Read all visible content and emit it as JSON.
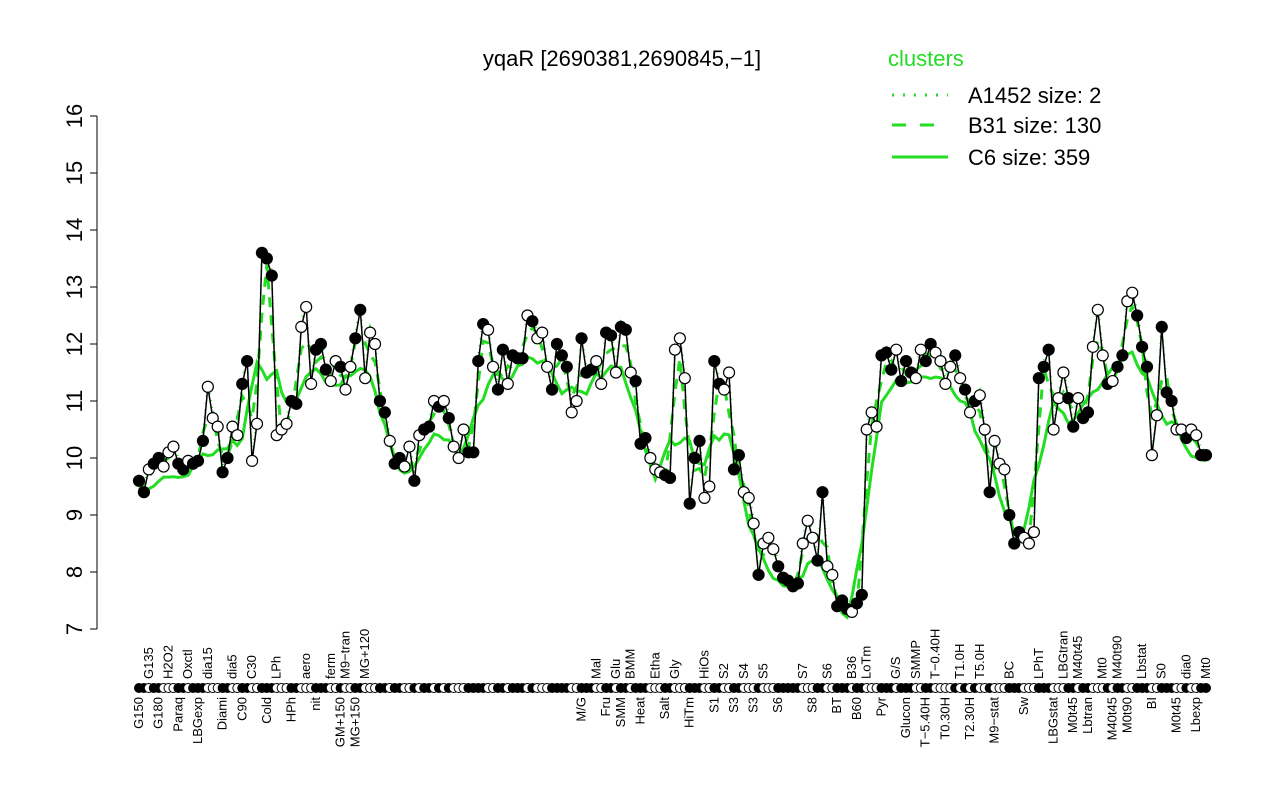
{
  "chart_data": {
    "type": "line",
    "title": "yqaR [2690381,2690845,−1]",
    "xlabel": "",
    "ylabel": "",
    "ylim": [
      7,
      16
    ],
    "yticks": [
      7,
      8,
      9,
      10,
      11,
      12,
      13,
      14,
      15,
      16
    ],
    "grid": false,
    "legend": {
      "title": "clusters",
      "placement": "top-right",
      "entries": [
        {
          "name": "A1452 size: 2",
          "style": "dotted"
        },
        {
          "name": "B31 size: 130",
          "style": "dashed"
        },
        {
          "name": "C6 size: 359",
          "style": "solid"
        }
      ]
    },
    "colors": {
      "cluster": "#22dd22",
      "points": "#000000"
    },
    "points": [
      [
        "G150",
        9.6,
        1
      ],
      [
        "",
        9.4,
        1
      ],
      [
        "G135",
        9.8,
        0
      ],
      [
        "",
        9.9,
        1
      ],
      [
        "G180",
        10.0,
        1
      ],
      [
        "",
        9.85,
        0
      ],
      [
        "H2O2",
        10.1,
        0
      ],
      [
        "",
        10.2,
        0
      ],
      [
        "Paraq",
        9.9,
        1
      ],
      [
        "",
        9.8,
        1
      ],
      [
        "Oxctl",
        9.95,
        0
      ],
      [
        "",
        9.9,
        1
      ],
      [
        "LBGexp",
        9.95,
        1
      ],
      [
        "",
        10.3,
        1
      ],
      [
        "dia15",
        11.25,
        0
      ],
      [
        "",
        10.7,
        0
      ],
      [
        "",
        10.55,
        0
      ],
      [
        "Diami",
        9.75,
        1
      ],
      [
        "",
        10.0,
        1
      ],
      [
        "dia5",
        10.55,
        0
      ],
      [
        "",
        10.4,
        0
      ],
      [
        "C90",
        11.3,
        1
      ],
      [
        "",
        11.7,
        1
      ],
      [
        "C30",
        9.95,
        0
      ],
      [
        "",
        10.6,
        0
      ],
      [
        "",
        13.6,
        1
      ],
      [
        "Cold",
        13.5,
        1
      ],
      [
        "",
        13.2,
        1
      ],
      [
        "LPh",
        10.4,
        0
      ],
      [
        "",
        10.5,
        0
      ],
      [
        "",
        10.6,
        0
      ],
      [
        "HPh",
        11.0,
        1
      ],
      [
        "",
        10.95,
        1
      ],
      [
        "",
        12.3,
        0
      ],
      [
        "aero",
        12.65,
        0
      ],
      [
        "",
        11.3,
        0
      ],
      [
        "nit",
        11.9,
        1
      ],
      [
        "",
        12.0,
        1
      ],
      [
        "",
        11.55,
        1
      ],
      [
        "ferm",
        11.35,
        0
      ],
      [
        "",
        11.7,
        0
      ],
      [
        "GM+150",
        11.6,
        1
      ],
      [
        "M9−tran",
        11.2,
        0
      ],
      [
        "",
        11.6,
        0
      ],
      [
        "MG+150",
        12.1,
        1
      ],
      [
        "",
        12.6,
        1
      ],
      [
        "MG+120",
        11.4,
        0
      ],
      [
        "",
        12.2,
        0
      ],
      [
        "",
        12.0,
        0
      ],
      [
        "",
        11.0,
        1
      ],
      [
        "",
        10.8,
        1
      ],
      [
        "",
        10.3,
        0
      ],
      [
        "",
        9.9,
        1
      ],
      [
        "",
        10.0,
        1
      ],
      [
        "",
        9.85,
        0
      ],
      [
        "",
        10.2,
        0
      ],
      [
        "",
        9.6,
        1
      ],
      [
        "",
        10.4,
        0
      ],
      [
        "",
        10.5,
        1
      ],
      [
        "",
        10.55,
        1
      ],
      [
        "",
        11.0,
        0
      ],
      [
        "",
        10.9,
        1
      ],
      [
        "",
        11.0,
        0
      ],
      [
        "",
        10.7,
        1
      ],
      [
        "",
        10.2,
        0
      ],
      [
        "",
        10.0,
        0
      ],
      [
        "",
        10.5,
        0
      ],
      [
        "",
        10.1,
        1
      ],
      [
        "",
        10.1,
        1
      ],
      [
        "",
        11.7,
        1
      ],
      [
        "",
        12.35,
        1
      ],
      [
        "",
        12.25,
        0
      ],
      [
        "",
        11.6,
        0
      ],
      [
        "",
        11.2,
        1
      ],
      [
        "",
        11.9,
        1
      ],
      [
        "",
        11.3,
        0
      ],
      [
        "",
        11.8,
        1
      ],
      [
        "",
        11.75,
        1
      ],
      [
        "",
        11.75,
        1
      ],
      [
        "",
        12.5,
        0
      ],
      [
        "",
        12.4,
        1
      ],
      [
        "",
        12.1,
        0
      ],
      [
        "",
        12.2,
        0
      ],
      [
        "",
        11.6,
        0
      ],
      [
        "",
        11.2,
        1
      ],
      [
        "",
        12.0,
        1
      ],
      [
        "",
        11.8,
        1
      ],
      [
        "",
        11.6,
        1
      ],
      [
        "",
        10.8,
        0
      ],
      [
        "",
        11.0,
        0
      ],
      [
        "M/G",
        12.1,
        1
      ],
      [
        "",
        11.5,
        1
      ],
      [
        "",
        11.55,
        1
      ],
      [
        "Mal",
        11.7,
        0
      ],
      [
        "",
        11.3,
        0
      ],
      [
        "Fru",
        12.2,
        1
      ],
      [
        "",
        12.15,
        1
      ],
      [
        "Glu",
        11.5,
        0
      ],
      [
        "SMM",
        12.3,
        1
      ],
      [
        "",
        12.25,
        1
      ],
      [
        "BMM",
        11.5,
        0
      ],
      [
        "",
        11.35,
        1
      ],
      [
        "Heat",
        10.25,
        1
      ],
      [
        "",
        10.35,
        1
      ],
      [
        "",
        10.0,
        0
      ],
      [
        "Etha",
        9.8,
        0
      ],
      [
        "",
        9.75,
        0
      ],
      [
        "Salt",
        9.7,
        1
      ],
      [
        "",
        9.65,
        1
      ],
      [
        "Gly",
        11.9,
        0
      ],
      [
        "",
        12.1,
        0
      ],
      [
        "",
        11.4,
        0
      ],
      [
        "HiTm",
        9.2,
        1
      ],
      [
        "",
        10.0,
        1
      ],
      [
        "",
        10.3,
        1
      ],
      [
        "HiOs",
        9.3,
        0
      ],
      [
        "",
        9.5,
        0
      ],
      [
        "S1",
        11.7,
        1
      ],
      [
        "",
        11.3,
        1
      ],
      [
        "S2",
        11.2,
        0
      ],
      [
        "",
        11.5,
        0
      ],
      [
        "S3",
        9.8,
        1
      ],
      [
        "",
        10.05,
        1
      ],
      [
        "S4",
        9.4,
        0
      ],
      [
        "",
        9.3,
        0
      ],
      [
        "S3",
        8.85,
        0
      ],
      [
        "",
        7.95,
        1
      ],
      [
        "S5",
        8.5,
        0
      ],
      [
        "",
        8.6,
        0
      ],
      [
        "",
        8.4,
        0
      ],
      [
        "S6",
        8.1,
        1
      ],
      [
        "",
        7.9,
        1
      ],
      [
        "",
        7.85,
        1
      ],
      [
        "",
        7.75,
        1
      ],
      [
        "",
        7.8,
        1
      ],
      [
        "S7",
        8.5,
        0
      ],
      [
        "",
        8.9,
        0
      ],
      [
        "S8",
        8.6,
        0
      ],
      [
        "",
        8.2,
        1
      ],
      [
        "",
        9.4,
        1
      ],
      [
        "S6",
        8.1,
        0
      ],
      [
        "",
        7.95,
        0
      ],
      [
        "BT",
        7.4,
        1
      ],
      [
        "",
        7.5,
        1
      ],
      [
        "",
        7.35,
        1
      ],
      [
        "B36",
        7.3,
        0
      ],
      [
        "B60",
        7.45,
        1
      ],
      [
        "",
        7.6,
        1
      ],
      [
        "LoTm",
        10.5,
        0
      ],
      [
        "",
        10.8,
        0
      ],
      [
        "",
        10.55,
        0
      ],
      [
        "Pyr",
        11.8,
        1
      ],
      [
        "",
        11.85,
        1
      ],
      [
        "",
        11.55,
        1
      ],
      [
        "G/S",
        11.9,
        0
      ],
      [
        "",
        11.35,
        1
      ],
      [
        "Glucon",
        11.7,
        1
      ],
      [
        "",
        11.5,
        1
      ],
      [
        "SMMP",
        11.4,
        0
      ],
      [
        "",
        11.9,
        0
      ],
      [
        "T−5.40H",
        11.7,
        1
      ],
      [
        "",
        12.0,
        1
      ],
      [
        "T−0.40H",
        11.85,
        0
      ],
      [
        "",
        11.7,
        0
      ],
      [
        "T0.30H",
        11.3,
        0
      ],
      [
        "",
        11.6,
        0
      ],
      [
        "",
        11.8,
        1
      ],
      [
        "T1.0H",
        11.4,
        0
      ],
      [
        "",
        11.2,
        1
      ],
      [
        "T2.30H",
        10.8,
        0
      ],
      [
        "",
        11.0,
        1
      ],
      [
        "T5.0H",
        11.1,
        0
      ],
      [
        "",
        10.5,
        0
      ],
      [
        "",
        9.4,
        1
      ],
      [
        "M9−stat",
        10.3,
        0
      ],
      [
        "",
        9.9,
        0
      ],
      [
        "",
        9.8,
        0
      ],
      [
        "BC",
        9.0,
        1
      ],
      [
        "",
        8.5,
        1
      ],
      [
        "",
        8.7,
        1
      ],
      [
        "Sw",
        8.6,
        0
      ],
      [
        "",
        8.5,
        0
      ],
      [
        "",
        8.7,
        0
      ],
      [
        "LPhT",
        11.4,
        1
      ],
      [
        "",
        11.6,
        1
      ],
      [
        "",
        11.9,
        1
      ],
      [
        "LBGstat",
        10.5,
        0
      ],
      [
        "",
        11.05,
        0
      ],
      [
        "LBGtran",
        11.5,
        0
      ],
      [
        "",
        11.05,
        1
      ],
      [
        "M0t45",
        10.55,
        1
      ],
      [
        "M40t45",
        11.05,
        0
      ],
      [
        "",
        10.7,
        1
      ],
      [
        "Lbtran",
        10.8,
        1
      ],
      [
        "",
        11.95,
        0
      ],
      [
        "",
        12.6,
        0
      ],
      [
        "Mt0",
        11.8,
        0
      ],
      [
        "",
        11.3,
        1
      ],
      [
        "M40t45",
        11.35,
        0
      ],
      [
        "M40t90",
        11.6,
        1
      ],
      [
        "",
        11.8,
        1
      ],
      [
        "M0t90",
        12.75,
        0
      ],
      [
        "",
        12.9,
        0
      ],
      [
        "",
        12.5,
        1
      ],
      [
        "Lbstat",
        11.95,
        1
      ],
      [
        "",
        11.6,
        1
      ],
      [
        "BI",
        10.05,
        0
      ],
      [
        "",
        10.75,
        0
      ],
      [
        "S0",
        12.3,
        1
      ],
      [
        "",
        11.15,
        1
      ],
      [
        "",
        11.0,
        1
      ],
      [
        "M0t45",
        10.5,
        0
      ],
      [
        "",
        10.5,
        0
      ],
      [
        "dia0",
        10.35,
        1
      ],
      [
        "",
        10.5,
        0
      ],
      [
        "Lbexp",
        10.4,
        0
      ],
      [
        "",
        10.05,
        1
      ],
      [
        "Mt0",
        10.05,
        1
      ]
    ]
  }
}
